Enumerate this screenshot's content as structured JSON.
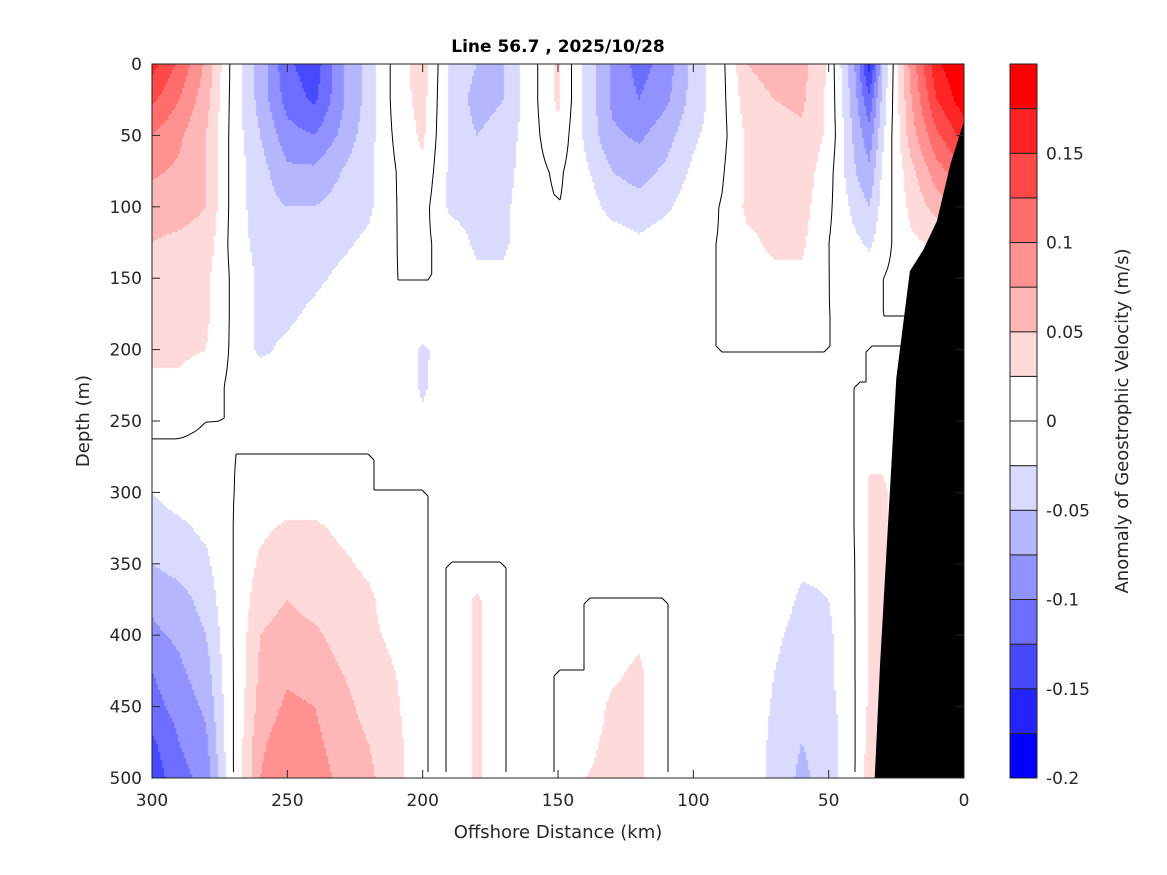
{
  "chart_data": {
    "type": "heatmap",
    "subtype": "filled-contour",
    "title": "Line 56.7 , 2025/10/28",
    "xlabel": "Offshore Distance (km)",
    "ylabel": "Depth (m)",
    "colorbar_label": "Anomaly of Geostrophic Velocity (m/s)",
    "xlim": [
      300,
      0
    ],
    "ylim": [
      500,
      0
    ],
    "x_reversed": true,
    "y_reversed": true,
    "xticks": [
      300,
      250,
      200,
      150,
      100,
      50,
      0
    ],
    "yticks": [
      0,
      50,
      100,
      150,
      200,
      250,
      300,
      350,
      400,
      450,
      500
    ],
    "colorbar": {
      "range": [
        -0.2,
        0.2
      ],
      "levels": [
        -0.2,
        -0.175,
        -0.15,
        -0.125,
        -0.1,
        -0.075,
        -0.05,
        -0.025,
        0,
        0.025,
        0.05,
        0.075,
        0.1,
        0.125,
        0.15,
        0.175,
        0.2
      ],
      "ticks": [
        0.15,
        0.1,
        0.05,
        0,
        -0.05,
        -0.1,
        -0.15,
        -0.2
      ],
      "tick_labels": [
        "0.15",
        "0.1",
        "0.05",
        "0",
        "-0.05",
        "-0.1",
        "-0.15",
        "-0.2"
      ],
      "colors": [
        "#0000ff",
        "#2424ff",
        "#4848ff",
        "#6d6dff",
        "#9191ff",
        "#b6b6ff",
        "#dadaff",
        "#ffffff",
        "#ffffff",
        "#ffdada",
        "#ffb6b6",
        "#ff9191",
        "#ff6d6d",
        "#ff4848",
        "#ff2424",
        "#ff0000"
      ]
    },
    "zero_contour": true,
    "bathymetry_color": "#000000",
    "bathymetry": {
      "x_km": [
        0,
        0,
        5,
        10,
        15,
        20,
        25,
        28,
        31,
        33
      ],
      "depth_m": [
        500,
        40,
        70,
        110,
        130,
        145,
        220,
        320,
        420,
        500
      ]
    },
    "grid": {
      "x_km": [
        300,
        290,
        280,
        270,
        260,
        250,
        240,
        230,
        220,
        210,
        200,
        190,
        180,
        170,
        160,
        150,
        140,
        130,
        120,
        110,
        100,
        90,
        80,
        70,
        60,
        50,
        40,
        35,
        30,
        20,
        10,
        0
      ],
      "depth_m": [
        0,
        25,
        50,
        75,
        100,
        125,
        150,
        175,
        200,
        225,
        250,
        275,
        300,
        325,
        350,
        375,
        400,
        425,
        450,
        475,
        500
      ],
      "velocity_m_s": [
        [
          0.16,
          0.12,
          0.07,
          -0.01,
          -0.06,
          -0.12,
          -0.14,
          -0.08,
          -0.04,
          0.01,
          0.04,
          -0.03,
          -0.05,
          -0.05,
          -0.01,
          0.03,
          -0.03,
          -0.08,
          -0.11,
          -0.09,
          -0.04,
          -0.01,
          0.05,
          0.06,
          0.06,
          0.02,
          -0.08,
          -0.16,
          -0.05,
          0.08,
          0.17,
          0.2
        ],
        [
          0.13,
          0.1,
          0.06,
          -0.01,
          -0.06,
          -0.11,
          -0.13,
          -0.08,
          -0.04,
          0.01,
          0.035,
          -0.03,
          -0.06,
          -0.05,
          -0.01,
          0.03,
          -0.03,
          -0.08,
          -0.1,
          -0.08,
          -0.04,
          -0.01,
          0.04,
          0.05,
          0.055,
          0.02,
          -0.07,
          -0.12,
          -0.04,
          0.07,
          0.15,
          0.19
        ],
        [
          0.1,
          0.08,
          0.05,
          -0.01,
          -0.05,
          -0.09,
          -0.1,
          -0.07,
          -0.035,
          0.005,
          0.03,
          -0.03,
          -0.05,
          -0.04,
          -0.01,
          0.02,
          -0.03,
          -0.07,
          -0.08,
          -0.06,
          -0.03,
          -0.01,
          0.03,
          0.04,
          0.045,
          0.02,
          -0.06,
          -0.09,
          -0.03,
          0.06,
          0.12,
          0.16
        ],
        [
          0.08,
          0.07,
          0.05,
          -0.01,
          -0.04,
          -0.07,
          -0.07,
          -0.05,
          -0.03,
          0.0,
          0.02,
          -0.03,
          -0.04,
          -0.035,
          -0.01,
          0.005,
          -0.02,
          -0.05,
          -0.06,
          -0.045,
          -0.02,
          -0.005,
          0.03,
          0.035,
          0.04,
          0.01,
          -0.05,
          -0.07,
          -0.02,
          0.04,
          0.09,
          0.12
        ],
        [
          0.06,
          0.06,
          0.05,
          -0.01,
          -0.04,
          -0.05,
          -0.05,
          -0.04,
          -0.03,
          0.0,
          0.01,
          -0.03,
          -0.035,
          -0.03,
          -0.01,
          0.0,
          -0.01,
          -0.035,
          -0.04,
          -0.03,
          -0.01,
          0.0,
          0.03,
          0.03,
          0.035,
          0.005,
          -0.035,
          -0.05,
          -0.015,
          0.03,
          0.06,
          0.08
        ],
        [
          0.05,
          0.045,
          0.04,
          -0.01,
          -0.035,
          -0.04,
          -0.035,
          -0.03,
          -0.02,
          0.0,
          0.005,
          -0.01,
          -0.03,
          -0.03,
          -0.005,
          0.0,
          0.0,
          -0.01,
          -0.02,
          -0.01,
          0.0,
          0.0,
          0.02,
          0.03,
          0.03,
          0.0,
          -0.02,
          -0.03,
          -0.01,
          0.02,
          0.03,
          0.04
        ],
        [
          0.04,
          0.04,
          0.03,
          -0.005,
          -0.03,
          -0.035,
          -0.03,
          -0.02,
          -0.01,
          0.0,
          0.0,
          0.0,
          -0.02,
          -0.02,
          0.0,
          0.0,
          0.0,
          0.0,
          0.0,
          0.0,
          0.0,
          0.0,
          0.015,
          0.02,
          0.02,
          0.0,
          -0.01,
          -0.01,
          0.0,
          0.01,
          0.01,
          0.01
        ],
        [
          0.035,
          0.035,
          0.03,
          -0.005,
          -0.03,
          -0.03,
          -0.02,
          -0.01,
          -0.005,
          0.0,
          0.0,
          0.0,
          -0.01,
          -0.005,
          0.0,
          0.0,
          0.0,
          0.0,
          0.0,
          0.0,
          0.0,
          0.0,
          0.005,
          0.005,
          0.005,
          0.0,
          0.0,
          0.0,
          0.0,
          0.0,
          0.0,
          0.0
        ],
        [
          0.03,
          0.03,
          0.025,
          -0.005,
          -0.03,
          -0.02,
          -0.01,
          0.0,
          0.0,
          0.0,
          -0.03,
          -0.01,
          0.0,
          0.0,
          0.0,
          0.0,
          0.0,
          0.0,
          0.0,
          0.0,
          0.0,
          0.0,
          0.0,
          0.0,
          0.0,
          0.0,
          0.0,
          0.0,
          0.0,
          0.0,
          0.0,
          0.0
        ],
        [
          0.02,
          0.02,
          0.01,
          -0.005,
          -0.01,
          -0.005,
          0.0,
          0.0,
          0.0,
          0.0,
          -0.03,
          -0.005,
          0.0,
          0.0,
          0.0,
          0.0,
          0.0,
          0.0,
          0.0,
          0.0,
          0.0,
          0.0,
          0.0,
          0.0,
          0.0,
          0.0,
          0.0,
          0.0,
          0.01,
          0.0,
          0.0,
          0.0
        ],
        [
          0.005,
          0.005,
          0.0,
          0.0,
          0.0,
          0.0,
          0.0,
          0.0,
          0.0,
          0.0,
          -0.02,
          0.0,
          0.0,
          0.0,
          0.0,
          0.0,
          0.0,
          0.0,
          0.0,
          0.0,
          0.0,
          0.0,
          0.0,
          0.0,
          0.0,
          0.0,
          0.0,
          0.01,
          0.02,
          0.0,
          0.0,
          0.0
        ],
        [
          -0.005,
          -0.005,
          -0.005,
          0.0,
          0.0,
          0.0,
          0.0,
          0.0,
          0.0,
          0.0,
          0.0,
          0.0,
          0.0,
          0.0,
          0.0,
          0.0,
          0.0,
          0.0,
          0.0,
          0.0,
          0.0,
          0.0,
          0.0,
          0.0,
          0.0,
          0.0,
          0.0,
          0.02,
          0.02,
          0.0,
          0.0,
          0.0
        ],
        [
          -0.025,
          -0.015,
          -0.01,
          0.0,
          0.005,
          0.01,
          0.01,
          0.005,
          0.0,
          0.0,
          0.0,
          0.0,
          0.0,
          0.0,
          0.0,
          0.0,
          0.0,
          0.0,
          0.0,
          0.0,
          0.0,
          0.0,
          0.0,
          0.0,
          0.0,
          0.0,
          0.0,
          0.03,
          0.03,
          0.0,
          0.0,
          0.0
        ],
        [
          -0.035,
          -0.03,
          -0.02,
          0.0,
          0.02,
          0.03,
          0.03,
          0.02,
          0.01,
          0.005,
          0.0,
          0.0,
          0.0,
          0.0,
          0.0,
          0.0,
          0.0,
          0.0,
          0.0,
          0.0,
          0.0,
          0.0,
          0.0,
          0.0,
          0.0,
          0.0,
          0.0,
          0.03,
          0.03,
          0.0,
          0.0,
          0.0
        ],
        [
          -0.05,
          -0.04,
          -0.03,
          0.0,
          0.03,
          0.035,
          0.035,
          0.03,
          0.02,
          0.01,
          0.0,
          0.0,
          0.0,
          0.0,
          0.0,
          0.0,
          0.0,
          0.0,
          0.0,
          0.0,
          0.0,
          0.0,
          0.0,
          0.0,
          -0.02,
          -0.02,
          0.0,
          0.03,
          0.03,
          0.0,
          0.0,
          0.0
        ],
        [
          -0.07,
          -0.06,
          -0.04,
          0.0,
          0.04,
          0.05,
          0.04,
          0.035,
          0.03,
          0.01,
          0.0,
          0.0,
          0.03,
          0.0,
          0.0,
          0.0,
          0.0,
          0.0,
          0.0,
          0.0,
          0.0,
          0.0,
          0.0,
          -0.01,
          -0.03,
          -0.025,
          0.0,
          0.03,
          0.03,
          0.0,
          0.0,
          0.0
        ],
        [
          -0.08,
          -0.07,
          -0.05,
          0.0,
          0.05,
          0.06,
          0.055,
          0.04,
          0.03,
          0.02,
          0.0,
          0.0,
          0.03,
          0.0,
          0.0,
          0.0,
          0.0,
          0.01,
          0.02,
          0.0,
          0.0,
          0.0,
          0.0,
          -0.02,
          -0.035,
          -0.03,
          0.0,
          0.03,
          0.03,
          0.0,
          0.0,
          0.0
        ],
        [
          -0.1,
          -0.08,
          -0.06,
          0.0,
          0.055,
          0.07,
          0.065,
          0.05,
          0.035,
          0.025,
          0.0,
          0.0,
          0.03,
          0.0,
          0.0,
          0.0,
          0.0,
          0.02,
          0.03,
          0.0,
          0.0,
          0.0,
          0.0,
          -0.025,
          -0.04,
          -0.03,
          0.0,
          0.03,
          0.03,
          0.0,
          0.0,
          0.0
        ],
        [
          -0.11,
          -0.09,
          -0.07,
          0.0,
          0.06,
          0.08,
          0.075,
          0.06,
          0.04,
          0.03,
          0.0,
          0.0,
          0.03,
          0.0,
          0.0,
          0.0,
          0.01,
          0.03,
          0.03,
          0.0,
          0.0,
          0.0,
          0.0,
          -0.03,
          -0.045,
          -0.035,
          0.0,
          0.03,
          0.03,
          0.0,
          0.0,
          0.0
        ],
        [
          -0.13,
          -0.1,
          -0.08,
          0.0,
          0.07,
          0.09,
          0.08,
          0.065,
          0.05,
          0.035,
          0.0,
          0.0,
          0.03,
          0.0,
          0.0,
          0.0,
          0.02,
          0.03,
          0.03,
          0.0,
          0.0,
          0.0,
          0.0,
          -0.035,
          -0.05,
          -0.04,
          0.0,
          0.035,
          0.03,
          0.0,
          0.0,
          0.0
        ],
        [
          -0.14,
          -0.11,
          -0.09,
          0.0,
          0.075,
          0.1,
          0.085,
          0.07,
          0.055,
          0.035,
          0.0,
          0.0,
          0.03,
          0.0,
          0.0,
          0.0,
          0.025,
          0.03,
          0.03,
          0.0,
          0.0,
          0.0,
          0.0,
          -0.035,
          -0.055,
          -0.04,
          0.0,
          0.04,
          0.03,
          0.0,
          0.0,
          0.0
        ]
      ]
    }
  }
}
